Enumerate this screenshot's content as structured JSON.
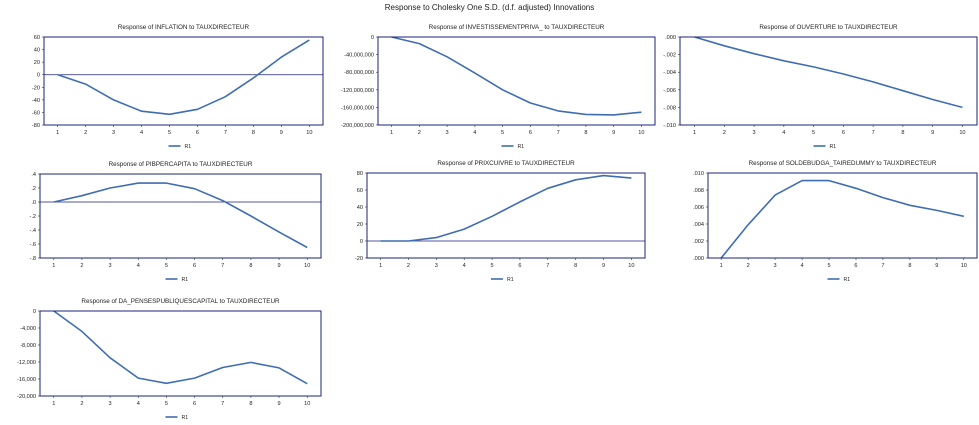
{
  "figure": {
    "title": "Response to Cholesky One S.D. (d.f. adjusted) Innovations"
  },
  "chart_data": [
    {
      "type": "line",
      "title": "Response of INFLATION to TAUXDIRECTEUR",
      "x": [
        1,
        2,
        3,
        4,
        5,
        6,
        7,
        8,
        9,
        10
      ],
      "ylim": [
        -80,
        60
      ],
      "yticks": [
        -80,
        -60,
        -40,
        -20,
        0,
        20,
        40,
        60
      ],
      "ytick_labels": [
        "-80",
        "-60",
        "-40",
        "-20",
        "0",
        "20",
        "40",
        "60"
      ],
      "zero_line": true,
      "series": [
        {
          "name": "R1",
          "values": [
            0,
            -15,
            -40,
            -58,
            -63,
            -55,
            -35,
            -5,
            28,
            55
          ]
        }
      ],
      "legend": "bottom-center"
    },
    {
      "type": "line",
      "title": "Response of INVESTISSEMENTPRIVA_ to TAUXDIRECTEUR",
      "x": [
        1,
        2,
        3,
        4,
        5,
        6,
        7,
        8,
        9,
        10
      ],
      "ylim": [
        -200000000,
        0
      ],
      "yticks": [
        -200000000,
        -160000000,
        -120000000,
        -80000000,
        -40000000,
        0
      ],
      "ytick_labels": [
        "-200,000,000",
        "-160,000,000",
        "-120,000,000",
        "-80,000,000",
        "-40,000,000",
        "0"
      ],
      "zero_line": false,
      "series": [
        {
          "name": "R1",
          "values": [
            0,
            -15000000,
            -45000000,
            -82000000,
            -120000000,
            -150000000,
            -168000000,
            -176000000,
            -177000000,
            -171000000
          ]
        }
      ],
      "legend": "bottom-center"
    },
    {
      "type": "line",
      "title": "Response of OUVERTURE to TAUXDIRECTEUR",
      "x": [
        1,
        2,
        3,
        4,
        5,
        6,
        7,
        8,
        9,
        10
      ],
      "ylim": [
        -0.01,
        0.0
      ],
      "yticks": [
        -0.01,
        -0.008,
        -0.006,
        -0.004,
        -0.002,
        0.0
      ],
      "ytick_labels": [
        "-.010",
        "-.008",
        "-.006",
        "-.004",
        "-.002",
        ".000"
      ],
      "zero_line": false,
      "series": [
        {
          "name": "R1",
          "values": [
            0,
            -0.001,
            -0.0019,
            -0.0027,
            -0.0034,
            -0.0042,
            -0.0051,
            -0.0061,
            -0.0071,
            -0.008
          ]
        }
      ],
      "legend": "bottom-center"
    },
    {
      "type": "line",
      "title": "Response of PIBPERCAPITA to TAUXDIRECTEUR",
      "x": [
        1,
        2,
        3,
        4,
        5,
        6,
        7,
        8,
        9,
        10
      ],
      "ylim": [
        -0.8,
        0.4
      ],
      "yticks": [
        -0.8,
        -0.6,
        -0.4,
        -0.2,
        0.0,
        0.2,
        0.4
      ],
      "ytick_labels": [
        "-.8",
        "-.6",
        "-.4",
        "-.2",
        ".0",
        ".2",
        ".4"
      ],
      "zero_line": true,
      "series": [
        {
          "name": "R1",
          "values": [
            0,
            0.09,
            0.2,
            0.27,
            0.27,
            0.19,
            0.02,
            -0.2,
            -0.43,
            -0.65
          ]
        }
      ],
      "legend": "bottom-center"
    },
    {
      "type": "line",
      "title": "Response of PRIXCUIVRE to TAUXDIRECTEUR",
      "x": [
        1,
        2,
        3,
        4,
        5,
        6,
        7,
        8,
        9,
        10
      ],
      "ylim": [
        -20,
        80
      ],
      "yticks": [
        -20,
        0,
        20,
        40,
        60,
        80
      ],
      "ytick_labels": [
        "-20",
        "0",
        "20",
        "40",
        "60",
        "80"
      ],
      "zero_line": true,
      "series": [
        {
          "name": "R1",
          "values": [
            0,
            0,
            4,
            14,
            29,
            46,
            62,
            72,
            77,
            74
          ]
        }
      ],
      "legend": "bottom-center"
    },
    {
      "type": "line",
      "title": "Response of SOLDEBUDGA_TAIREDUMMY to TAUXDIRECTEUR",
      "x": [
        1,
        2,
        3,
        4,
        5,
        6,
        7,
        8,
        9,
        10
      ],
      "ylim": [
        0.0,
        0.01
      ],
      "yticks": [
        0.0,
        0.002,
        0.004,
        0.006,
        0.008,
        0.01
      ],
      "ytick_labels": [
        ".000",
        ".002",
        ".004",
        ".006",
        ".008",
        ".010"
      ],
      "zero_line": false,
      "series": [
        {
          "name": "R1",
          "values": [
            0,
            0.0039,
            0.0074,
            0.0091,
            0.0091,
            0.0082,
            0.0071,
            0.0062,
            0.0056,
            0.0049
          ]
        }
      ],
      "legend": "bottom-center"
    },
    {
      "type": "line",
      "title": "Response of DA_PENSESPUBLIQUESCAPITAL to TAUXDIRECTEUR",
      "x": [
        1,
        2,
        3,
        4,
        5,
        6,
        7,
        8,
        9,
        10
      ],
      "ylim": [
        -20000,
        0
      ],
      "yticks": [
        -20000,
        -16000,
        -12000,
        -8000,
        -4000,
        0
      ],
      "ytick_labels": [
        "-20,000",
        "-16,000",
        "-12,000",
        "-8,000",
        "-4,000",
        "0"
      ],
      "zero_line": false,
      "series": [
        {
          "name": "R1",
          "values": [
            0,
            -4800,
            -11000,
            -15800,
            -17000,
            -15800,
            -13300,
            -12100,
            -13400,
            -17100
          ]
        }
      ],
      "legend": "bottom-center"
    }
  ]
}
